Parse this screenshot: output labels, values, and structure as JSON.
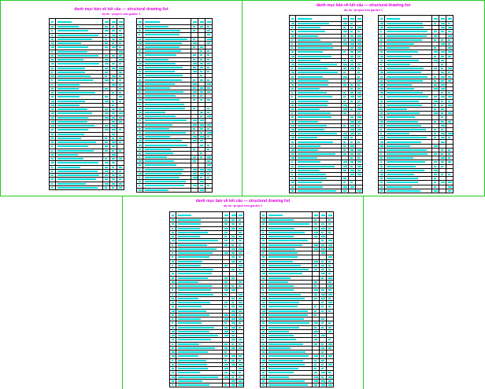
{
  "colors": {
    "frame": "#22cc22",
    "title": "#e000e0",
    "text": "#00e0e0",
    "grid": "#000000"
  },
  "sheets": [
    {
      "title": "danh mục bản vẽ kết cấu — structural drawing list",
      "subtitle": "dự án ~project new garden 1"
    },
    {
      "title": "danh mục bản vẽ kết cấu — structural drawing list",
      "subtitle": "dự án ~project new garden 1"
    },
    {
      "title": "danh mục bản vẽ kết cấu — structural drawing list",
      "subtitle": "dự án ~project new garden 1"
    }
  ]
}
